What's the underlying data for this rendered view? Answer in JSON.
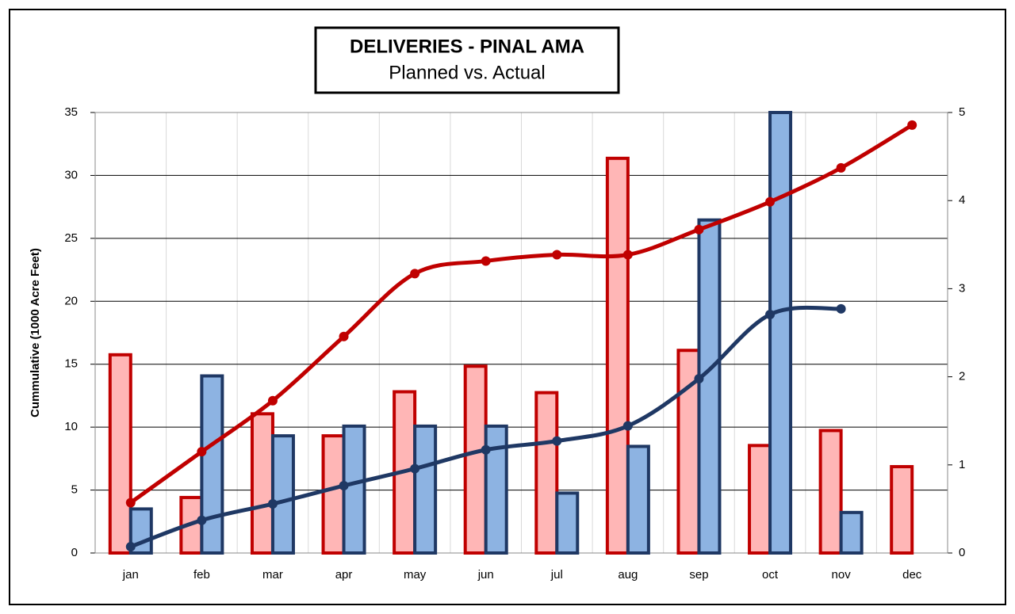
{
  "chart_data": {
    "type": "bar",
    "title": "DELIVERIES - PINAL AMA",
    "subtitle": "Planned vs. Actual",
    "y_label": "Cummulative (1000  Acre Feet)",
    "categories": [
      "jan",
      "feb",
      "mar",
      "apr",
      "may",
      "jun",
      "jul",
      "aug",
      "sep",
      "oct",
      "nov",
      "dec"
    ],
    "series": [
      {
        "type": "bar",
        "axis": "y2",
        "color": "#ffb6b6",
        "edge": "#c00000",
        "values": [
          2.25,
          0.63,
          1.58,
          1.33,
          1.83,
          2.12,
          1.82,
          4.48,
          2.3,
          1.22,
          1.39,
          0.98
        ]
      },
      {
        "type": "bar",
        "axis": "y2",
        "color": "#8db3e2",
        "edge": "#1f3864",
        "values": [
          0.5,
          2.01,
          1.33,
          1.44,
          1.44,
          1.44,
          0.68,
          1.21,
          3.78,
          5,
          0.46,
          null
        ]
      },
      {
        "type": "line",
        "color": "#c00000",
        "values": [
          4.0,
          8.05,
          12.1,
          17.2,
          22.2,
          23.2,
          23.7,
          23.7,
          25.7,
          27.9,
          30.6,
          34.0
        ]
      },
      {
        "type": "line",
        "color": "#1f3864",
        "values": [
          0.5,
          2.6,
          3.9,
          5.35,
          6.7,
          8.2,
          8.9,
          10.1,
          13.85,
          18.95,
          19.4,
          null
        ]
      }
    ],
    "ylim": [
      0,
      35
    ],
    "yticks": [
      0,
      5,
      10,
      15,
      20,
      25,
      30,
      35
    ],
    "y2lim": [
      0,
      5
    ],
    "y2ticks": [
      0,
      1,
      2,
      3,
      4,
      5
    ],
    "grid": true
  }
}
